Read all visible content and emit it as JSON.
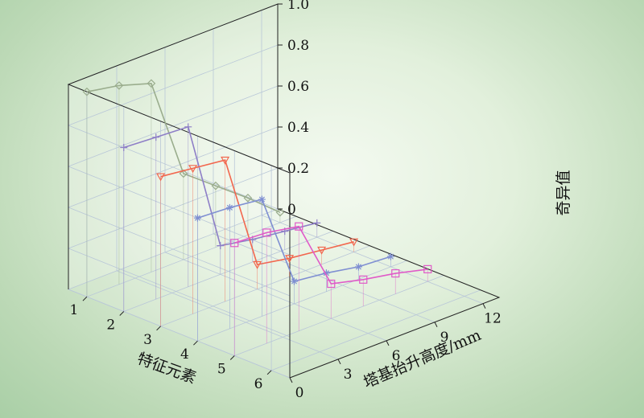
{
  "chart_data": {
    "type": "line",
    "projection": "3d-waterfall",
    "title": "",
    "xlabel": "塔基抬升高度/mm",
    "ylabel": "特征元素",
    "zlabel": "奇异值",
    "x_ticks": [
      "0",
      "3",
      "6",
      "9",
      "12"
    ],
    "y_ticks": [
      "1",
      "2",
      "3",
      "4",
      "5",
      "6"
    ],
    "z_ticks": [
      "0",
      "0.2",
      "0.4",
      "0.6",
      "0.8",
      "1.0"
    ],
    "xlim": [
      0,
      13
    ],
    "ylim": [
      0.5,
      6.5
    ],
    "zlim": [
      0,
      1.0
    ],
    "grid": true,
    "series": [
      {
        "element": 1,
        "color": "#9aad8d",
        "marker": "diamond",
        "x": [
          0,
          2,
          4,
          6,
          8,
          10,
          12
        ],
        "values": [
          1.0,
          0.97,
          0.92,
          0.42,
          0.3,
          0.18,
          0.05
        ]
      },
      {
        "element": 2,
        "color": "#8e7fc7",
        "marker": "plus",
        "x": [
          0,
          2,
          4,
          6,
          8,
          10,
          12
        ],
        "values": [
          0.8,
          0.79,
          0.78,
          0.14,
          0.11,
          0.09,
          0.07
        ]
      },
      {
        "element": 3,
        "color": "#f2674e",
        "marker": "triangle",
        "x": [
          0,
          2,
          4,
          6,
          8,
          10,
          12
        ],
        "values": [
          0.73,
          0.71,
          0.69,
          0.12,
          0.09,
          0.07,
          0.05
        ]
      },
      {
        "element": 4,
        "color": "#7f8fd2",
        "marker": "star",
        "x": [
          0,
          2,
          4,
          6,
          8,
          10,
          12
        ],
        "values": [
          0.6,
          0.59,
          0.57,
          0.11,
          0.09,
          0.06,
          0.05
        ]
      },
      {
        "element": 5,
        "color": "#e05bc8",
        "marker": "square",
        "x": [
          0,
          2,
          4,
          6,
          8,
          10,
          12
        ],
        "values": [
          0.55,
          0.54,
          0.51,
          0.17,
          0.13,
          0.1,
          0.06
        ]
      }
    ]
  }
}
